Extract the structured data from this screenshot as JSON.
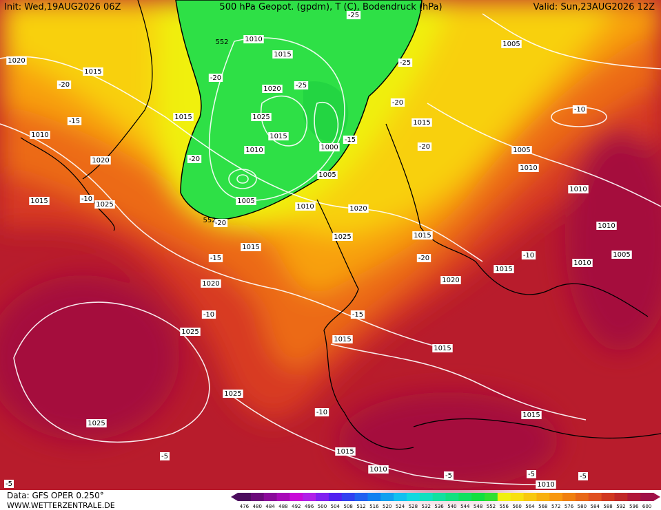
{
  "header": {
    "init": "Init: Wed,19AUG2026 06Z",
    "title": "500 hPa Geopot. (gpdm), T (C), Bodendruck (hPa)",
    "valid": "Valid: Sun,23AUG2026 12Z"
  },
  "footer": {
    "data": "Data: GFS OPER 0.250°",
    "site": "WWW.WETTERZENTRALE.DE"
  },
  "scale": {
    "labels": [
      476,
      480,
      484,
      488,
      492,
      496,
      500,
      504,
      508,
      512,
      516,
      520,
      524,
      528,
      532,
      536,
      540,
      544,
      548,
      552,
      556,
      560,
      564,
      568,
      572,
      576,
      580,
      584,
      588,
      592,
      596,
      600
    ],
    "colors": [
      "#4b0d5e",
      "#6a0a7a",
      "#8a0a9a",
      "#a80ab8",
      "#c80ad8",
      "#b020e8",
      "#8020f0",
      "#5020f0",
      "#3040f0",
      "#2060f0",
      "#1080f0",
      "#10a0f0",
      "#10c0f0",
      "#10d8e0",
      "#10e0c0",
      "#10e0a0",
      "#10e080",
      "#10e060",
      "#10e040",
      "#30e030",
      "#f0f010",
      "#f8e010",
      "#f8c810",
      "#f8b010",
      "#f89810",
      "#f08010",
      "#e86818",
      "#e05020",
      "#d03820",
      "#c02828",
      "#b01838",
      "#a01048"
    ]
  },
  "geopotential_labels": [
    "552",
    "552"
  ],
  "isobar_labels": [
    "1020",
    "1015",
    "1010",
    "1015",
    "1020",
    "1015",
    "1025",
    "1010",
    "1015",
    "1020",
    "1025",
    "1015",
    "1010",
    "1000",
    "1005",
    "1005",
    "1010",
    "1020",
    "1025",
    "1015",
    "1020",
    "1025",
    "1015",
    "1015",
    "1005",
    "1005",
    "1010",
    "1010",
    "1010",
    "1005",
    "1010",
    "1015",
    "1020",
    "1015",
    "1015",
    "1025",
    "1025",
    "1015",
    "1015",
    "1010",
    "1010"
  ],
  "temperature_labels": [
    "-20",
    "-15",
    "-20",
    "-20",
    "-10",
    "-20",
    "-15",
    "-10",
    "-25",
    "-25",
    "-25",
    "-20",
    "-15",
    "-20",
    "-20",
    "-10",
    "-10",
    "-15",
    "-10",
    "-5",
    "-5",
    "-5",
    "-5",
    "-5"
  ]
}
